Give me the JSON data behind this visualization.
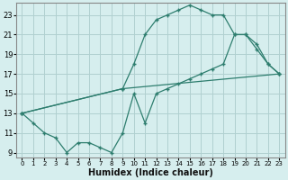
{
  "xlabel": "Humidex (Indice chaleur)",
  "background_color": "#d6eeee",
  "grid_color": "#b0d0d0",
  "line_color": "#2d7d6e",
  "xlim": [
    -0.5,
    23.5
  ],
  "ylim": [
    8.5,
    24.2
  ],
  "xticks": [
    0,
    1,
    2,
    3,
    4,
    5,
    6,
    7,
    8,
    9,
    10,
    11,
    12,
    13,
    14,
    15,
    16,
    17,
    18,
    19,
    20,
    21,
    22,
    23
  ],
  "yticks": [
    9,
    11,
    13,
    15,
    17,
    19,
    21,
    23
  ],
  "line1_x": [
    0,
    9,
    23
  ],
  "line1_y": [
    13,
    15.5,
    17
  ],
  "line2_x": [
    0,
    9,
    10,
    11,
    12,
    13,
    14,
    15,
    16,
    17,
    18,
    19,
    20,
    21,
    22,
    23
  ],
  "line2_y": [
    13,
    15.5,
    18,
    21,
    22.5,
    23,
    23.5,
    24,
    23.5,
    23,
    23,
    21,
    21,
    20,
    18,
    17
  ],
  "line3_x": [
    0,
    1,
    2,
    3,
    4,
    5,
    6,
    7,
    8,
    9,
    10,
    11,
    12,
    13,
    14,
    15,
    16,
    17,
    18,
    19,
    20,
    21,
    22,
    23
  ],
  "line3_y": [
    13,
    12,
    11,
    10.5,
    9,
    10,
    10,
    9.5,
    9,
    11,
    15,
    12,
    15,
    15.5,
    16,
    16.5,
    17,
    17.5,
    18,
    21,
    21,
    19.5,
    18,
    17
  ]
}
